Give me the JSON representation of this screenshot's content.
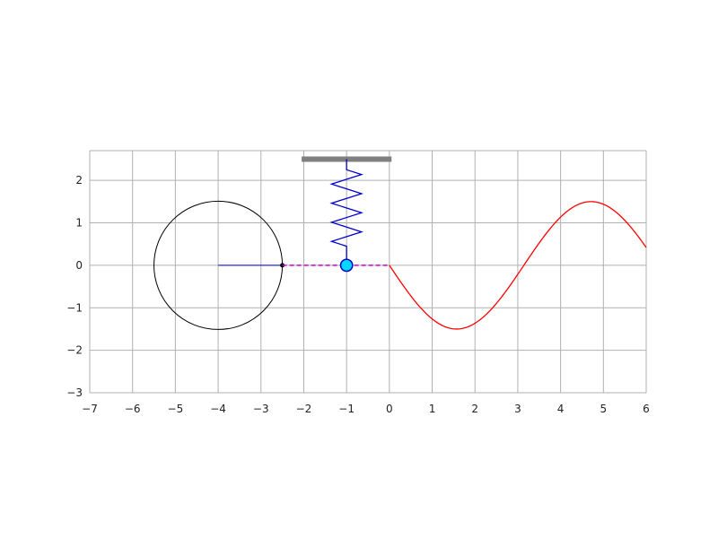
{
  "chart_data": {
    "type": "line",
    "xlim": [
      -7,
      6
    ],
    "ylim": [
      -3,
      2.7
    ],
    "grid": true,
    "x_ticks": [
      -7,
      -6,
      -5,
      -4,
      -3,
      -2,
      -1,
      0,
      1,
      2,
      3,
      4,
      5,
      6
    ],
    "y_ticks": [
      -3,
      -2,
      -1,
      0,
      1,
      2
    ],
    "x_tick_labels": [
      "−7",
      "−6",
      "−5",
      "−4",
      "−3",
      "−2",
      "−1",
      "0",
      "1",
      "2",
      "3",
      "4",
      "5",
      "6"
    ],
    "y_tick_labels": [
      "−3",
      "−2",
      "−1",
      "0",
      "1",
      "2"
    ],
    "circle": {
      "center": [
        -4,
        0
      ],
      "radius": 1.5
    },
    "radius_vector": {
      "from": [
        -4,
        0
      ],
      "to": [
        -2.5,
        0
      ]
    },
    "projection_line": {
      "from": [
        -2.5,
        0
      ],
      "to": [
        0,
        0
      ]
    },
    "mass": {
      "center": [
        -1,
        0
      ],
      "radius": 0.14
    },
    "spring": {
      "x": -1,
      "top_y": 2.5,
      "bottom_y": 0,
      "zigzags": 4,
      "amplitude": 0.35,
      "coil_top_y": 2.25,
      "coil_bottom_y": 0.45
    },
    "ceiling": {
      "x_from": -2.05,
      "x_to": 0.05,
      "y": 2.5
    },
    "wave": {
      "amplitude": 1.5,
      "omega": 1.0,
      "phase": 3.14159,
      "x_from": 0,
      "x_to": 6,
      "samples": [
        [
          0.0,
          0.0
        ],
        [
          0.25,
          -0.37
        ],
        [
          0.5,
          -0.72
        ],
        [
          0.75,
          -1.02
        ],
        [
          1.0,
          -1.26
        ],
        [
          1.25,
          -1.42
        ],
        [
          1.5,
          -1.5
        ],
        [
          1.75,
          -1.48
        ],
        [
          2.0,
          -1.36
        ],
        [
          2.25,
          -1.17
        ],
        [
          2.5,
          -0.9
        ],
        [
          2.75,
          -0.57
        ],
        [
          3.0,
          -0.21
        ],
        [
          3.25,
          0.16
        ],
        [
          3.5,
          0.53
        ],
        [
          3.75,
          0.86
        ],
        [
          4.0,
          1.14
        ],
        [
          4.25,
          1.34
        ],
        [
          4.5,
          1.47
        ],
        [
          4.75,
          1.5
        ],
        [
          5.0,
          1.44
        ],
        [
          5.25,
          1.29
        ],
        [
          5.5,
          1.06
        ],
        [
          5.75,
          0.77
        ],
        [
          6.0,
          0.42
        ]
      ]
    },
    "colors": {
      "grid": "#b0b0b0",
      "circle": "#000000",
      "radius_vector": "#0000cc",
      "projection": "#cc00cc",
      "spring": "#0000cc",
      "ceiling": "#808080",
      "mass_fill": "#00d8ff",
      "mass_stroke": "#0000cc",
      "wave": "#ff0000"
    }
  }
}
